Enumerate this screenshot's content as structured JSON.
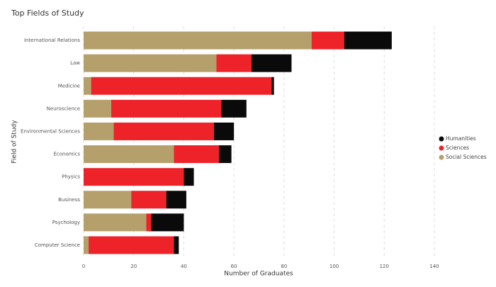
{
  "chart_data": {
    "type": "stacked-bar-horizontal",
    "title": "Top Fields of Study",
    "x_label": "Number of Graduates",
    "y_label": "Field of Study",
    "categories": [
      "International Relations",
      "Law",
      "Medicine",
      "Neuroscience",
      "Environmental Sciences",
      "Economics",
      "Physics",
      "Business",
      "Psychology",
      "Computer Science"
    ],
    "series": [
      {
        "name": "Humanities",
        "color": "#0a0a0a",
        "values": [
          19,
          16,
          1,
          10,
          8,
          5,
          4,
          8,
          13,
          2
        ]
      },
      {
        "name": "Sciences",
        "color": "#ee2229",
        "values": [
          13,
          14,
          72,
          44,
          40,
          18,
          40,
          14,
          2,
          34
        ]
      },
      {
        "name": "Social Sciences",
        "color": "#b5a06c",
        "values": [
          91,
          53,
          3,
          11,
          12,
          36,
          0,
          19,
          25,
          2
        ]
      }
    ],
    "xlim": [
      0,
      155
    ],
    "xticks": [
      0,
      20,
      40,
      60,
      80,
      100,
      120,
      140
    ],
    "grid": true,
    "legend": "right"
  }
}
